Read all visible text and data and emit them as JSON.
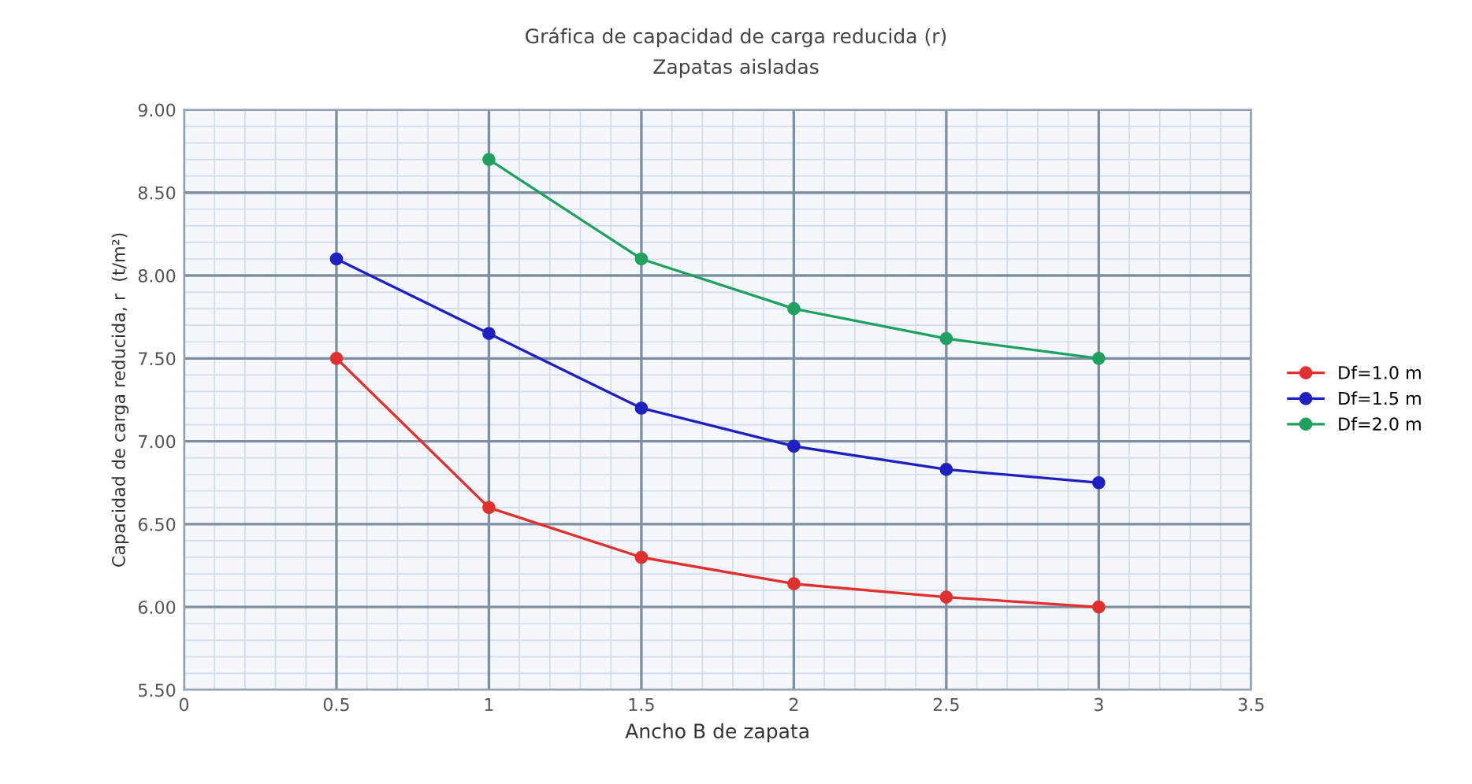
{
  "chart_data": {
    "type": "line",
    "title": "Gráfica de capacidad de carga reducida (r)",
    "subtitle": "Zapatas aisladas",
    "xlabel": "Ancho B de zapata",
    "ylabel": "Capacidad de carga reducida, r  (t/m²)",
    "x": [
      0.5,
      1,
      1.5,
      2,
      2.5,
      3
    ],
    "series": [
      {
        "name": "Df=1.0 m",
        "color": "#e03030",
        "values": [
          7.5,
          6.6,
          6.3,
          6.14,
          6.06,
          6.0
        ]
      },
      {
        "name": "Df=1.5 m",
        "color": "#2020c0",
        "values": [
          8.1,
          7.65,
          7.2,
          6.97,
          6.83,
          6.75
        ]
      },
      {
        "name": "Df=2.0 m",
        "color": "#20a060",
        "values": [
          null,
          8.7,
          8.1,
          7.8,
          7.62,
          7.5
        ]
      }
    ],
    "xlim": [
      0,
      3.5
    ],
    "xticks": [
      0,
      0.5,
      1,
      1.5,
      2,
      2.5,
      3,
      3.5
    ],
    "ylim": [
      5.5,
      9.0
    ],
    "yticks": [
      {
        "value": 5.5,
        "label": "5.50"
      },
      {
        "value": 6.0,
        "label": "6.00"
      },
      {
        "value": 6.5,
        "label": "6.50"
      },
      {
        "value": 7.0,
        "label": "7.00"
      },
      {
        "value": 7.5,
        "label": "7.50"
      },
      {
        "value": 8.0,
        "label": "8.00"
      },
      {
        "value": 8.5,
        "label": "8.50"
      },
      {
        "value": 9.0,
        "label": "9.00"
      }
    ],
    "grid": true,
    "legend": "right",
    "marker": "circle",
    "line_style": "solid"
  }
}
